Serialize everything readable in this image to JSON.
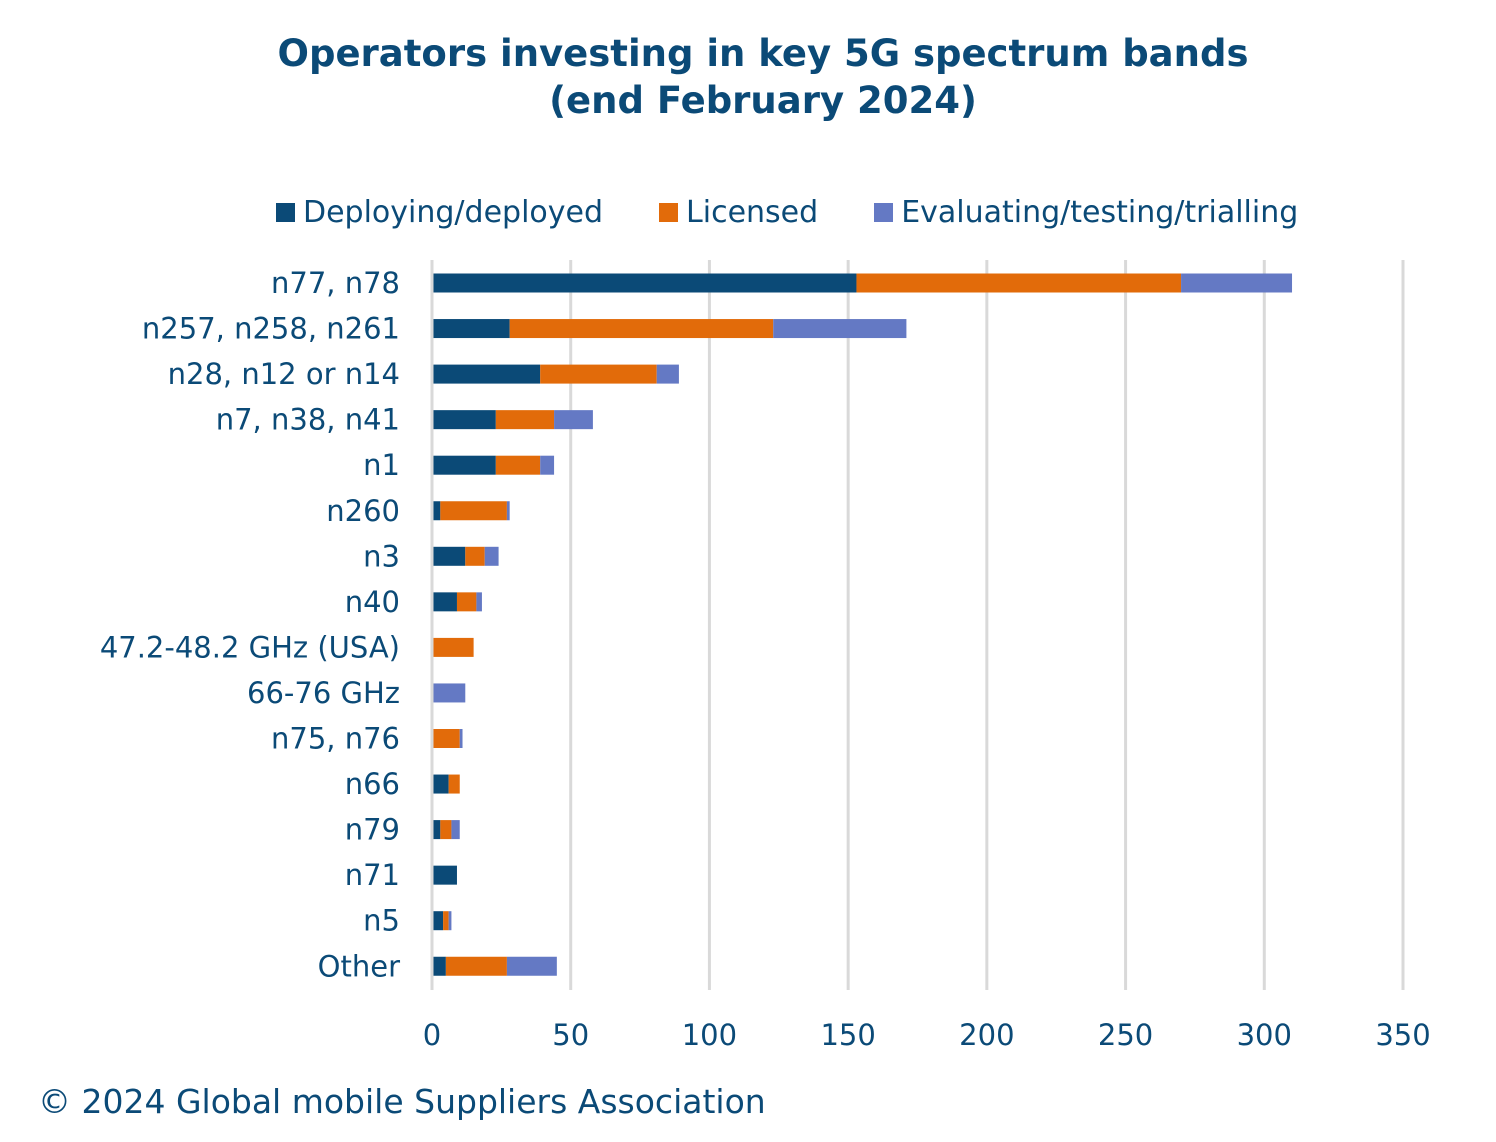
{
  "chart_data": {
    "type": "bar",
    "orientation": "horizontal",
    "stacked": true,
    "title": "Operators investing in key 5G spectrum bands",
    "subtitle": "(end February 2024)",
    "xlabel": "",
    "ylabel": "",
    "xlim": [
      0,
      350
    ],
    "xticks": [
      0,
      50,
      100,
      150,
      200,
      250,
      300,
      350
    ],
    "grid": true,
    "legend_position": "top",
    "categories": [
      "n77, n78",
      "n257, n258, n261",
      "n28, n12 or n14",
      "n7, n38, n41",
      "n1",
      "n260",
      "n3",
      "n40",
      "47.2-48.2 GHz (USA)",
      "66-76 GHz",
      "n75, n76",
      "n66",
      "n79",
      "n71",
      "n5",
      "Other"
    ],
    "series": [
      {
        "name": "Deploying/deployed",
        "color": "#0b4a77",
        "values": [
          153,
          28,
          39,
          23,
          23,
          3,
          12,
          9,
          0,
          0,
          0,
          6,
          3,
          9,
          4,
          5
        ]
      },
      {
        "name": "Licensed",
        "color": "#e26b0a",
        "values": [
          117,
          95,
          42,
          21,
          16,
          24,
          7,
          7,
          15,
          0,
          10,
          4,
          4,
          0,
          2,
          22
        ]
      },
      {
        "name": "Evaluating/testing/trialling",
        "color": "#6479c4",
        "values": [
          40,
          48,
          8,
          14,
          5,
          1,
          5,
          2,
          0,
          12,
          1,
          0,
          3,
          0,
          1,
          18
        ]
      }
    ]
  },
  "footer": "© 2024 Global mobile Suppliers Association"
}
